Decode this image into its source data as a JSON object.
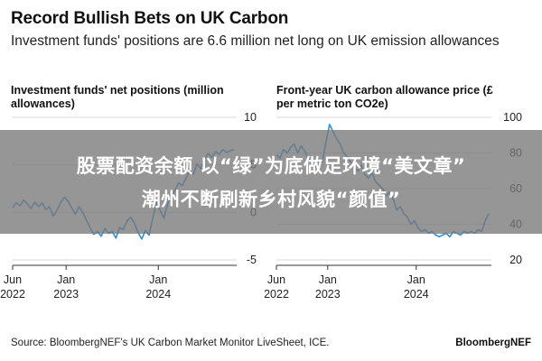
{
  "header": {
    "title": "Record Bullish Bets on UK Carbon",
    "subtitle": "Investment funds' positions are 6.6 million net long on UK emission allowances"
  },
  "banner": {
    "line1": "股票配资余额 以“绿”为底做足环境“美文章”",
    "line2": "潮州不断刷新乡村风貌“颜值”"
  },
  "footer": {
    "source": "Source: BloombergNEF's UK Carbon Market Monitor LiveSheet, ICE.",
    "brand": "BloombergNEF"
  },
  "chart_data": [
    {
      "type": "line",
      "title": "Investment funds' net positions (million allowances)",
      "xlabel": "",
      "ylabel": "",
      "color": "#2f8fd8",
      "ylim": [
        -5,
        10
      ],
      "yticks": [
        "10",
        "5",
        "0",
        "-5"
      ],
      "ytick_values": [
        10,
        5,
        0,
        -5
      ],
      "xlim": [
        2022.42,
        2024.85
      ],
      "xticks": [
        {
          "label": "Jun",
          "year": "2022",
          "x": 2022.42
        },
        {
          "label": "Jan",
          "year": "2023",
          "x": 2023.0
        },
        {
          "label": "Jan",
          "year": "2024",
          "x": 2024.0
        }
      ],
      "x": [
        2022.42,
        2022.46,
        2022.5,
        2022.54,
        2022.58,
        2022.62,
        2022.66,
        2022.7,
        2022.74,
        2022.78,
        2022.82,
        2022.86,
        2022.9,
        2022.94,
        2022.98,
        2023.02,
        2023.06,
        2023.1,
        2023.14,
        2023.18,
        2023.22,
        2023.26,
        2023.3,
        2023.34,
        2023.38,
        2023.42,
        2023.46,
        2023.5,
        2023.54,
        2023.58,
        2023.62,
        2023.66,
        2023.7,
        2023.74,
        2023.78,
        2023.82,
        2023.86,
        2023.9,
        2023.94,
        2023.98,
        2024.02,
        2024.06,
        2024.1,
        2024.14,
        2024.18,
        2024.22,
        2024.26,
        2024.3,
        2024.34,
        2024.38,
        2024.42,
        2024.46,
        2024.5,
        2024.54,
        2024.58,
        2024.62,
        2024.66,
        2024.7,
        2024.74,
        2024.78,
        2024.82
      ],
      "values": [
        0.5,
        1.0,
        0.7,
        1.3,
        0.9,
        0.4,
        1.1,
        0.6,
        1.0,
        0.3,
        0.6,
        -0.4,
        0.2,
        1.0,
        1.6,
        1.2,
        0.5,
        -0.2,
        0.6,
        0.0,
        -0.8,
        -1.6,
        -2.3,
        -2.0,
        -2.5,
        -1.7,
        -2.2,
        -2.0,
        -2.7,
        -1.6,
        -1.8,
        -0.9,
        -0.5,
        -1.1,
        -2.1,
        -2.8,
        -1.9,
        -2.4,
        -0.6,
        1.0,
        0.2,
        -0.6,
        0.9,
        1.6,
        2.3,
        3.1,
        2.8,
        3.6,
        4.4,
        4.0,
        5.1,
        4.6,
        5.6,
        6.2,
        5.8,
        6.4,
        6.1,
        6.6,
        6.3,
        6.5,
        6.6
      ]
    },
    {
      "type": "line",
      "title": "Front-year UK carbon allowance price (£ per metric ton CO2e)",
      "xlabel": "",
      "ylabel": "",
      "color": "#2f8fd8",
      "ylim": [
        20,
        100
      ],
      "yticks": [
        "100",
        "80",
        "60",
        "40",
        "20"
      ],
      "ytick_values": [
        100,
        80,
        60,
        40,
        20
      ],
      "xlim": [
        2022.42,
        2024.85
      ],
      "xticks": [
        {
          "label": "Jun",
          "year": "2022",
          "x": 2022.42
        },
        {
          "label": "Jan",
          "year": "2023",
          "x": 2023.0
        },
        {
          "label": "Jan",
          "year": "2024",
          "x": 2024.0
        }
      ],
      "x": [
        2022.42,
        2022.46,
        2022.5,
        2022.54,
        2022.58,
        2022.62,
        2022.66,
        2022.7,
        2022.74,
        2022.78,
        2022.82,
        2022.86,
        2022.9,
        2022.94,
        2022.98,
        2023.02,
        2023.06,
        2023.1,
        2023.14,
        2023.18,
        2023.22,
        2023.26,
        2023.3,
        2023.34,
        2023.38,
        2023.42,
        2023.46,
        2023.5,
        2023.54,
        2023.58,
        2023.62,
        2023.66,
        2023.7,
        2023.74,
        2023.78,
        2023.82,
        2023.86,
        2023.9,
        2023.94,
        2023.98,
        2024.02,
        2024.06,
        2024.1,
        2024.14,
        2024.18,
        2024.22,
        2024.26,
        2024.3,
        2024.34,
        2024.38,
        2024.42,
        2024.46,
        2024.5,
        2024.54,
        2024.58,
        2024.62,
        2024.66,
        2024.7,
        2024.74,
        2024.78,
        2024.82
      ],
      "values": [
        79,
        77,
        82,
        80,
        83,
        85,
        80,
        84,
        81,
        77,
        74,
        72,
        76,
        75,
        86,
        96,
        92,
        88,
        85,
        80,
        78,
        75,
        72,
        70,
        73,
        68,
        66,
        69,
        64,
        62,
        60,
        56,
        58,
        54,
        48,
        50,
        46,
        44,
        40,
        42,
        38,
        36,
        37,
        35,
        36,
        34,
        33,
        34,
        35,
        33,
        36,
        35,
        34,
        36,
        35,
        36,
        35,
        37,
        36,
        42,
        46
      ]
    }
  ]
}
